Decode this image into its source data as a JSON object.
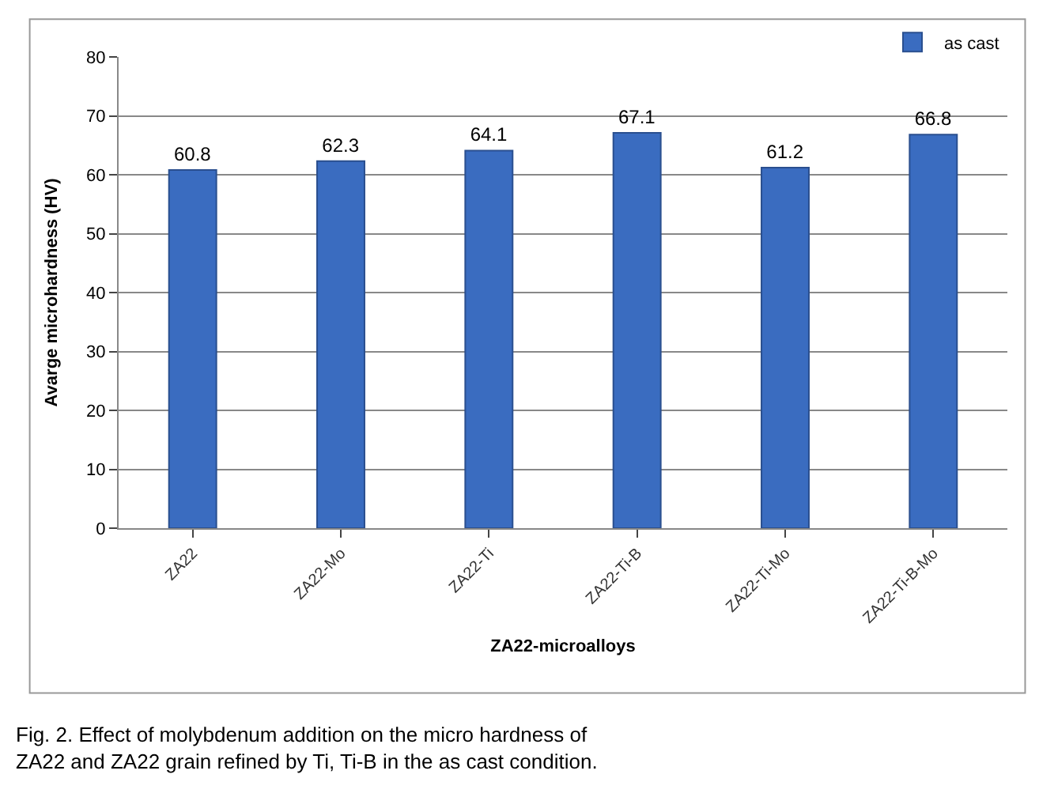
{
  "chart_data": {
    "type": "bar",
    "categories": [
      "ZA22",
      "ZA22-Mo",
      "ZA22-Ti",
      "ZA22-Ti-B",
      "ZA22-Ti-Mo",
      "ZA22-Ti-B-Mo"
    ],
    "series": [
      {
        "name": "as cast",
        "color": "#3a6cc0",
        "values": [
          60.8,
          62.3,
          64.1,
          67.1,
          61.2,
          66.8
        ]
      }
    ],
    "data_labels": true,
    "xlabel": "ZA22-microalloys",
    "ylabel": "Avarge microhardness (HV)",
    "ylim": [
      0,
      80
    ],
    "yticks": [
      0,
      10,
      20,
      30,
      40,
      50,
      60,
      70,
      80
    ],
    "grid": "y",
    "legend": "top right",
    "annotations": [
      "Fig. 2. Effect of molybdenum addition on the micro hardness of ZA22 and ZA22 grain refined by Ti, Ti-B in the as cast condition."
    ]
  }
}
